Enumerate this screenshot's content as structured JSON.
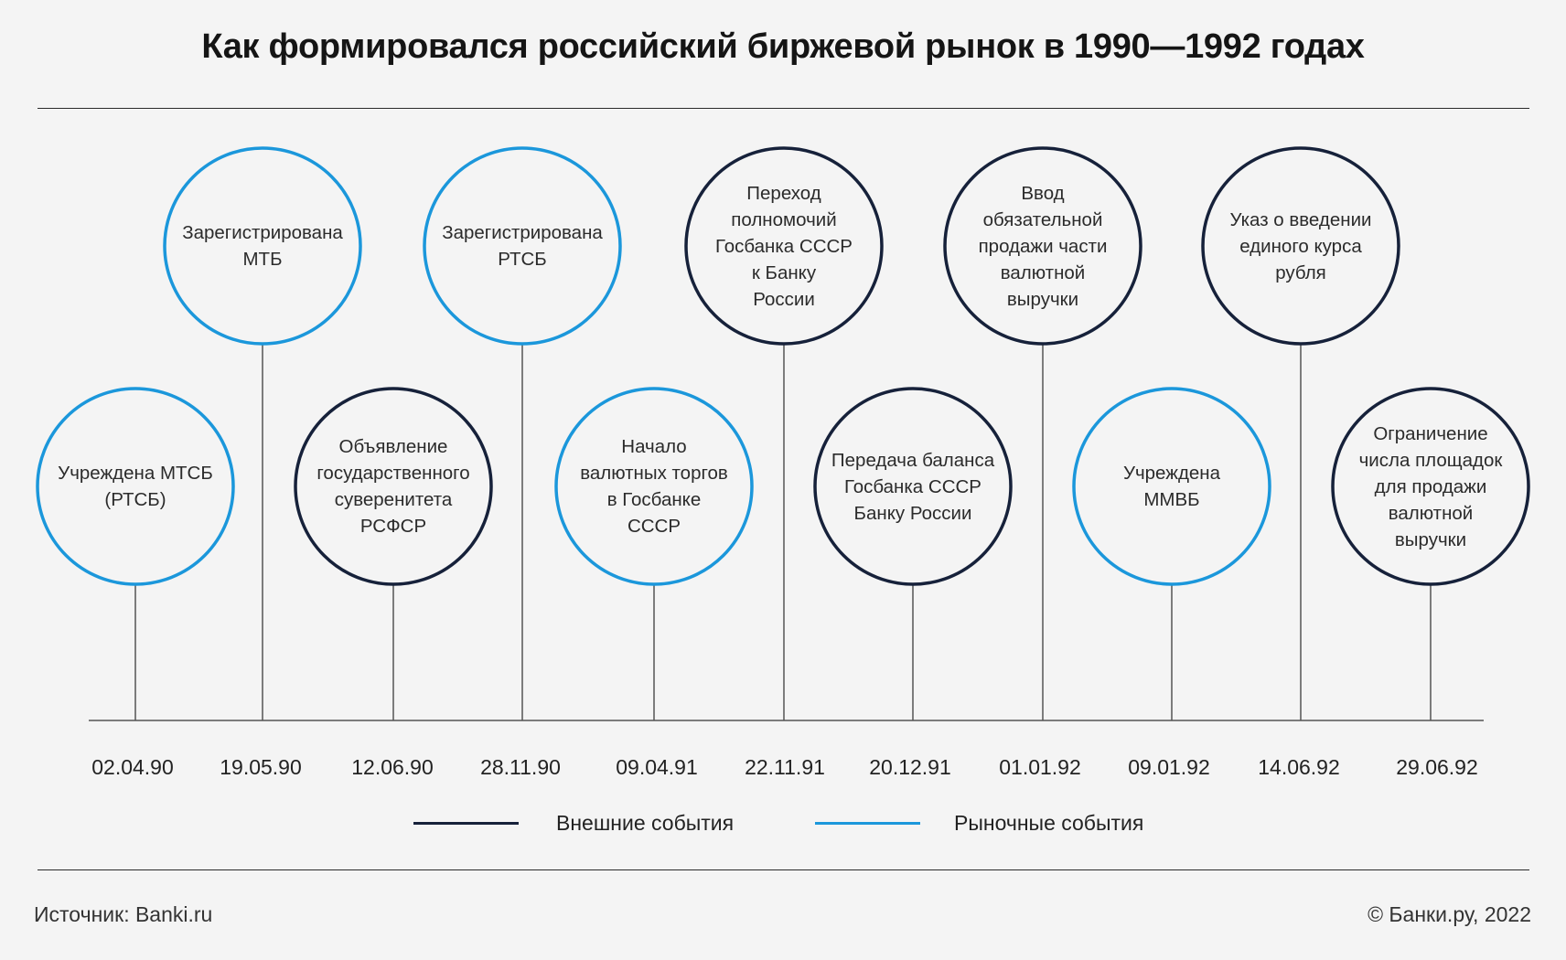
{
  "title": "Как формировался российский биржевой рынок в 1990—1992 годах",
  "colors": {
    "external": "#16213a",
    "market": "#1b97db",
    "axis": "#555555"
  },
  "events": [
    {
      "date": "02.04.90",
      "label": "Учреждена МТСБ (РТСБ)",
      "type": "market",
      "row": "low"
    },
    {
      "date": "19.05.90",
      "label": "Зарегистрирована МТБ",
      "type": "market",
      "row": "high"
    },
    {
      "date": "12.06.90",
      "label": "Объявление государственного суверенитета РСФСР",
      "type": "external",
      "row": "low"
    },
    {
      "date": "28.11.90",
      "label": "Зарегистрирована РТСБ",
      "type": "market",
      "row": "high"
    },
    {
      "date": "09.04.91",
      "label": "Начало валютных торгов в Госбанке СССР",
      "type": "market",
      "row": "low"
    },
    {
      "date": "22.11.91",
      "label": "Переход полномочий Госбанка СССР к Банку России",
      "type": "external",
      "row": "high"
    },
    {
      "date": "20.12.91",
      "label": "Передача баланса Госбанка СССР Банку России",
      "type": "external",
      "row": "low"
    },
    {
      "date": "01.01.92",
      "label": "Ввод обязательной продажи части валютной выручки",
      "type": "external",
      "row": "high"
    },
    {
      "date": "09.01.92",
      "label": "Учреждена ММВБ",
      "type": "market",
      "row": "low"
    },
    {
      "date": "14.06.92",
      "label": "Указ о введении единого курса рубля",
      "type": "external",
      "row": "high"
    },
    {
      "date": "29.06.92",
      "label": "Ограничение числа площадок для продажи валютной выручки",
      "type": "external",
      "row": "low"
    }
  ],
  "legend": {
    "external": "Внешние события",
    "market": "Рыночные события"
  },
  "footer": {
    "source": "Источник: Banki.ru",
    "copyright": "© Банки.ру, 2022"
  }
}
